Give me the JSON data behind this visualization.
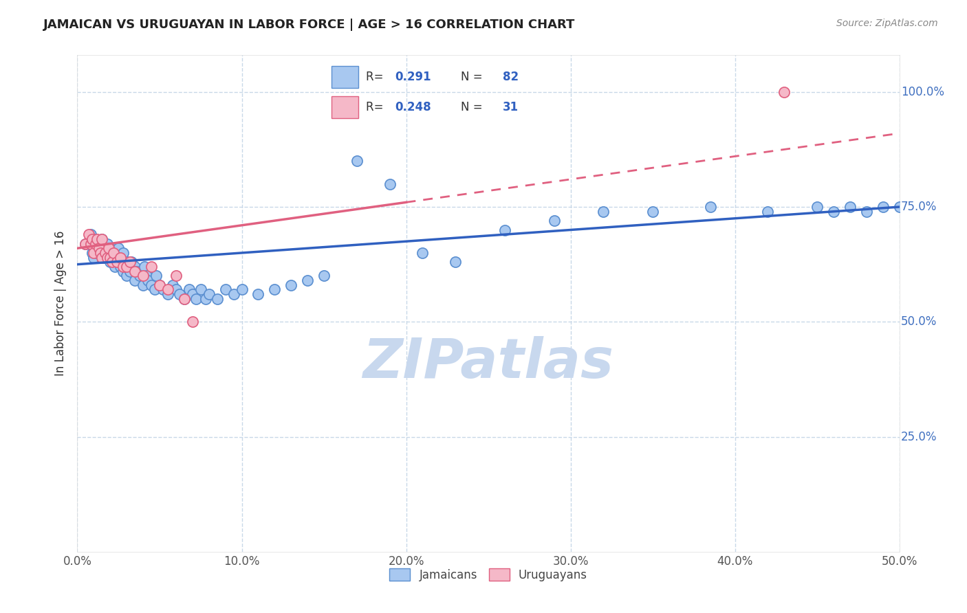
{
  "title": "JAMAICAN VS URUGUAYAN IN LABOR FORCE | AGE > 16 CORRELATION CHART",
  "source_text": "Source: ZipAtlas.com",
  "ylabel": "In Labor Force | Age > 16",
  "xlim": [
    0.0,
    0.5
  ],
  "ylim": [
    0.0,
    1.08
  ],
  "xtick_labels": [
    "0.0%",
    "10.0%",
    "20.0%",
    "30.0%",
    "40.0%",
    "50.0%"
  ],
  "xtick_values": [
    0.0,
    0.1,
    0.2,
    0.3,
    0.4,
    0.5
  ],
  "ytick_labels": [
    "25.0%",
    "50.0%",
    "75.0%",
    "100.0%"
  ],
  "ytick_values": [
    0.25,
    0.5,
    0.75,
    1.0
  ],
  "r_jamaican": 0.291,
  "n_jamaican": 82,
  "r_uruguayan": 0.248,
  "n_uruguayan": 31,
  "color_jamaican": "#a8c8f0",
  "color_uruguayan": "#f5b8c8",
  "edge_jamaican": "#5b8fd0",
  "edge_uruguayan": "#e06080",
  "trendline_jamaican": "#3060c0",
  "trendline_uruguayan": "#e06080",
  "ytick_color": "#4070c0",
  "watermark_color": "#c8d8ee",
  "background_color": "#ffffff",
  "grid_color": "#c8d8e8",
  "jamaican_x": [
    0.005,
    0.008,
    0.009,
    0.01,
    0.01,
    0.012,
    0.013,
    0.014,
    0.015,
    0.015,
    0.016,
    0.017,
    0.018,
    0.018,
    0.019,
    0.02,
    0.02,
    0.021,
    0.022,
    0.022,
    0.023,
    0.024,
    0.025,
    0.025,
    0.026,
    0.027,
    0.028,
    0.028,
    0.03,
    0.03,
    0.031,
    0.032,
    0.033,
    0.035,
    0.035,
    0.036,
    0.038,
    0.04,
    0.041,
    0.042,
    0.043,
    0.045,
    0.047,
    0.048,
    0.05,
    0.052,
    0.055,
    0.058,
    0.06,
    0.062,
    0.065,
    0.068,
    0.07,
    0.072,
    0.075,
    0.078,
    0.08,
    0.085,
    0.09,
    0.095,
    0.1,
    0.11,
    0.12,
    0.13,
    0.14,
    0.15,
    0.17,
    0.19,
    0.21,
    0.23,
    0.26,
    0.29,
    0.32,
    0.35,
    0.385,
    0.42,
    0.45,
    0.46,
    0.47,
    0.48,
    0.49,
    0.5
  ],
  "jamaican_y": [
    0.67,
    0.69,
    0.65,
    0.64,
    0.68,
    0.65,
    0.67,
    0.66,
    0.65,
    0.68,
    0.64,
    0.66,
    0.65,
    0.67,
    0.64,
    0.63,
    0.66,
    0.64,
    0.63,
    0.65,
    0.62,
    0.64,
    0.63,
    0.66,
    0.62,
    0.64,
    0.61,
    0.65,
    0.6,
    0.63,
    0.62,
    0.61,
    0.63,
    0.59,
    0.62,
    0.61,
    0.6,
    0.58,
    0.62,
    0.6,
    0.59,
    0.58,
    0.57,
    0.6,
    0.58,
    0.57,
    0.56,
    0.58,
    0.57,
    0.56,
    0.55,
    0.57,
    0.56,
    0.55,
    0.57,
    0.55,
    0.56,
    0.55,
    0.57,
    0.56,
    0.57,
    0.56,
    0.57,
    0.58,
    0.59,
    0.6,
    0.85,
    0.8,
    0.65,
    0.63,
    0.7,
    0.72,
    0.74,
    0.74,
    0.75,
    0.74,
    0.75,
    0.74,
    0.75,
    0.74,
    0.75,
    0.75
  ],
  "uruguayan_x": [
    0.005,
    0.007,
    0.008,
    0.009,
    0.01,
    0.011,
    0.012,
    0.013,
    0.014,
    0.015,
    0.015,
    0.017,
    0.018,
    0.019,
    0.02,
    0.021,
    0.022,
    0.024,
    0.026,
    0.028,
    0.03,
    0.032,
    0.035,
    0.04,
    0.045,
    0.05,
    0.055,
    0.06,
    0.065,
    0.07,
    0.43
  ],
  "uruguayan_y": [
    0.67,
    0.69,
    0.67,
    0.68,
    0.65,
    0.67,
    0.68,
    0.66,
    0.65,
    0.68,
    0.64,
    0.65,
    0.64,
    0.66,
    0.64,
    0.63,
    0.65,
    0.63,
    0.64,
    0.62,
    0.62,
    0.63,
    0.61,
    0.6,
    0.62,
    0.58,
    0.57,
    0.6,
    0.55,
    0.5,
    1.0
  ],
  "trendline_j_x0": 0.0,
  "trendline_j_y0": 0.625,
  "trendline_j_x1": 0.5,
  "trendline_j_y1": 0.75,
  "trendline_u_x0": 0.0,
  "trendline_u_y0": 0.66,
  "trendline_u_x1_solid": 0.2,
  "trendline_u_y1_solid": 0.76,
  "trendline_u_x1_dash": 0.5,
  "trendline_u_y1_dash": 0.91
}
